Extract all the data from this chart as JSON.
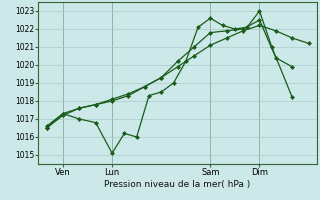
{
  "bg_color": "#cce8e8",
  "grid_color": "#aacccc",
  "line_color": "#1a5c1a",
  "marker_color": "#1a5c1a",
  "xlabel": "Pression niveau de la mer( hPa )",
  "ylim": [
    1014.5,
    1023.5
  ],
  "yticks": [
    1015,
    1016,
    1017,
    1018,
    1019,
    1020,
    1021,
    1022,
    1023
  ],
  "xtick_labels": [
    "Ven",
    "Lun",
    "Sam",
    "Dim"
  ],
  "xtick_positions": [
    8,
    32,
    80,
    104
  ],
  "vlines": [
    8,
    32,
    80,
    104
  ],
  "series1_smooth": {
    "x": [
      0,
      8,
      16,
      24,
      32,
      40,
      48,
      56,
      64,
      72,
      80,
      88,
      96,
      104,
      112,
      120,
      128
    ],
    "y": [
      1016.5,
      1017.2,
      1017.6,
      1017.8,
      1018.1,
      1018.4,
      1018.8,
      1019.3,
      1019.9,
      1020.5,
      1021.1,
      1021.5,
      1021.9,
      1022.2,
      1021.9,
      1021.5,
      1021.2
    ]
  },
  "series2_volatile": {
    "x": [
      0,
      8,
      16,
      24,
      32,
      38,
      44,
      50,
      56,
      62,
      68,
      74,
      80,
      86,
      92,
      98,
      104,
      110,
      120
    ],
    "y": [
      1016.6,
      1017.3,
      1017.0,
      1016.8,
      1015.1,
      1016.2,
      1016.0,
      1018.3,
      1018.5,
      1019.0,
      1020.2,
      1022.1,
      1022.6,
      1022.2,
      1022.0,
      1022.1,
      1023.0,
      1021.0,
      1018.2
    ]
  },
  "series3_medium": {
    "x": [
      0,
      8,
      16,
      24,
      32,
      40,
      48,
      56,
      64,
      72,
      80,
      88,
      96,
      104,
      112,
      120
    ],
    "y": [
      1016.5,
      1017.3,
      1017.6,
      1017.8,
      1018.0,
      1018.3,
      1018.8,
      1019.3,
      1020.2,
      1021.0,
      1021.8,
      1021.9,
      1022.0,
      1022.5,
      1020.4,
      1019.9
    ]
  },
  "total_hours": 128
}
